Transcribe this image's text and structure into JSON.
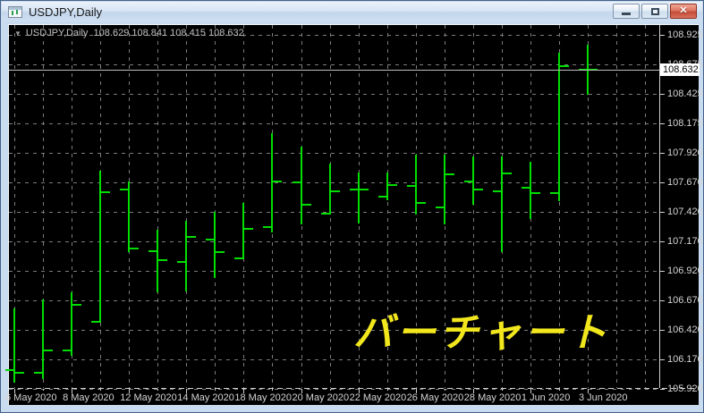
{
  "window": {
    "title": "USDJPY,Daily",
    "controls": {
      "minimize": "minimize",
      "restore": "restore",
      "close_glyph": "✕"
    }
  },
  "chart_label": {
    "symbol_period": "USDJPY,Daily",
    "ohlc_text": "108.629 108.841 108.415 108.632"
  },
  "annotation": {
    "text": "バーチャート",
    "color": "#f2e71d"
  },
  "price_box": {
    "value": "108.632"
  },
  "colors": {
    "bar_green": "#00dd00",
    "background": "#000000",
    "grid": "#7c7c7c",
    "axis_text": "#d4d4d4",
    "annotation_yellow": "#f2e71d",
    "close_button_red": "#c44c36"
  },
  "chart_data": {
    "type": "bar",
    "symbol": "USDJPY",
    "timeframe": "Daily",
    "title": "USDJPY,Daily",
    "current_price": 108.632,
    "y_axis": {
      "top_price": 108.925,
      "bottom_price": 105.92,
      "ticks": [
        108.925,
        108.675,
        108.425,
        108.175,
        107.92,
        107.67,
        107.42,
        107.17,
        106.92,
        106.67,
        106.42,
        106.17,
        105.92
      ]
    },
    "x_label_bar_indexes": [
      0,
      2,
      4,
      6,
      8,
      10,
      12,
      14,
      16,
      18,
      20
    ],
    "bars": [
      {
        "date": "6 May 2020",
        "o": 106.08,
        "h": 106.6,
        "l": 105.97,
        "c": 106.06
      },
      {
        "date": "7 May 2020",
        "o": 106.06,
        "h": 106.68,
        "l": 106.0,
        "c": 106.25
      },
      {
        "date": "8 May 2020",
        "o": 106.25,
        "h": 106.74,
        "l": 106.2,
        "c": 106.63
      },
      {
        "date": "11 May 2020",
        "o": 106.49,
        "h": 107.77,
        "l": 106.48,
        "c": 107.59
      },
      {
        "date": "12 May 2020",
        "o": 107.61,
        "h": 107.68,
        "l": 107.08,
        "c": 107.11
      },
      {
        "date": "13 May 2020",
        "o": 107.09,
        "h": 107.27,
        "l": 106.74,
        "c": 107.01
      },
      {
        "date": "14 May 2020",
        "o": 107.0,
        "h": 107.35,
        "l": 106.75,
        "c": 107.21
      },
      {
        "date": "15 May 2020",
        "o": 107.19,
        "h": 107.42,
        "l": 106.86,
        "c": 107.08
      },
      {
        "date": "18 May 2020",
        "o": 107.03,
        "h": 107.5,
        "l": 107.02,
        "c": 107.28
      },
      {
        "date": "19 May 2020",
        "o": 107.29,
        "h": 108.09,
        "l": 107.25,
        "c": 107.68
      },
      {
        "date": "20 May 2020",
        "o": 107.67,
        "h": 107.98,
        "l": 107.32,
        "c": 107.48
      },
      {
        "date": "21 May 2020",
        "o": 107.41,
        "h": 107.83,
        "l": 107.4,
        "c": 107.6
      },
      {
        "date": "22 May 2020",
        "o": 107.61,
        "h": 107.76,
        "l": 107.32,
        "c": 107.61
      },
      {
        "date": "25 May 2020",
        "o": 107.55,
        "h": 107.76,
        "l": 107.52,
        "c": 107.65
      },
      {
        "date": "26 May 2020",
        "o": 107.64,
        "h": 107.91,
        "l": 107.4,
        "c": 107.5
      },
      {
        "date": "27 May 2020",
        "o": 107.46,
        "h": 107.91,
        "l": 107.32,
        "c": 107.74
      },
      {
        "date": "28 May 2020",
        "o": 107.68,
        "h": 107.89,
        "l": 107.48,
        "c": 107.61
      },
      {
        "date": "29 May 2020",
        "o": 107.6,
        "h": 107.89,
        "l": 107.08,
        "c": 107.75
      },
      {
        "date": "1 Jun 2020",
        "o": 107.63,
        "h": 107.85,
        "l": 107.36,
        "c": 107.58
      },
      {
        "date": "2 Jun 2020",
        "o": 107.58,
        "h": 108.77,
        "l": 107.51,
        "c": 108.66
      },
      {
        "date": "3 Jun 2020",
        "o": 108.629,
        "h": 108.841,
        "l": 108.415,
        "c": 108.632
      }
    ]
  }
}
